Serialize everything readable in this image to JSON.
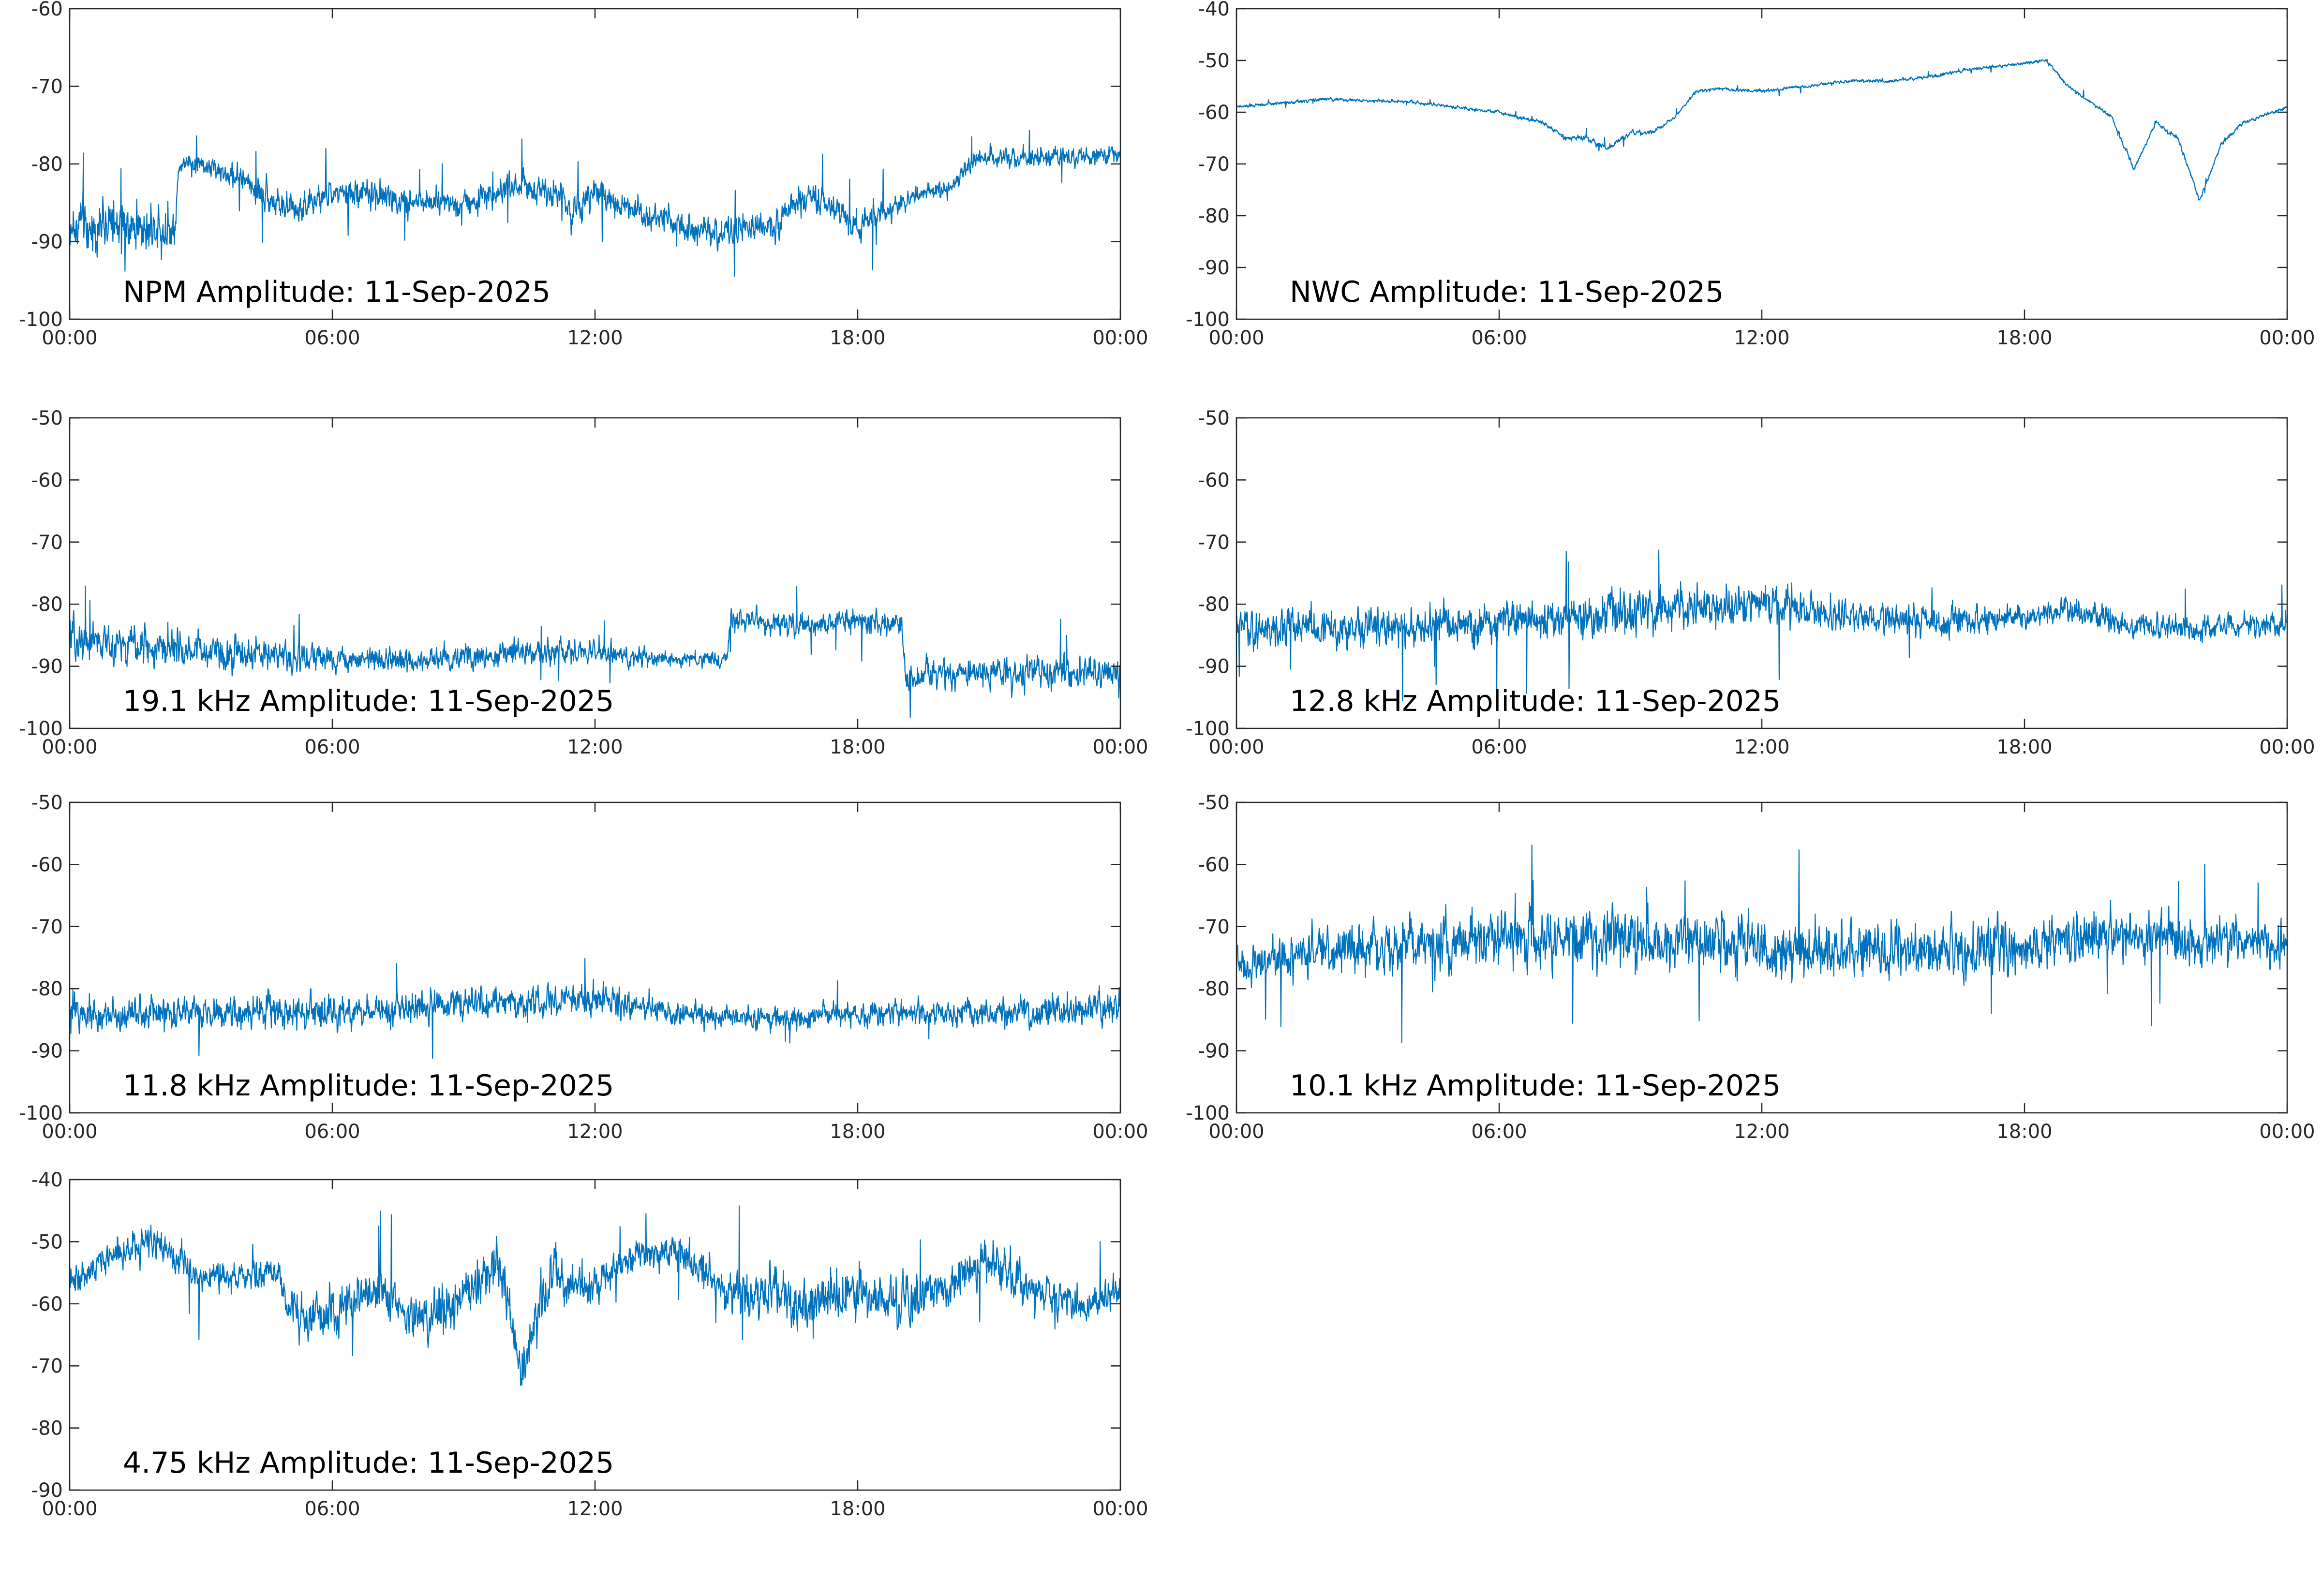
{
  "chart_data": [
    {
      "type": "line",
      "title": "NPM Amplitude: 11-Sep-2025",
      "x_ticks": [
        "00:00",
        "06:00",
        "12:00",
        "18:00",
        "00:00"
      ],
      "xlim_hours": [
        0,
        24
      ],
      "ylim": [
        -100,
        -60
      ],
      "y_ticks": [
        -60,
        -70,
        -80,
        -90,
        -100
      ],
      "series": [
        {
          "color": "#0072BD",
          "hours": [
            0,
            1,
            2,
            2.4,
            2.5,
            3,
            4,
            5,
            6,
            7,
            8,
            9,
            10,
            11,
            11.5,
            12,
            13,
            14,
            15,
            16,
            17,
            18,
            19,
            20,
            20.3,
            20.5,
            21,
            22,
            23,
            24
          ],
          "center": [
            -88,
            -88,
            -88,
            -88,
            -80,
            -80,
            -82,
            -86,
            -84,
            -84,
            -85,
            -85,
            -83,
            -83,
            -86,
            -84,
            -86,
            -88,
            -89,
            -88,
            -84,
            -88,
            -85,
            -83,
            -82,
            -80,
            -79,
            -79,
            -79,
            -79
          ],
          "spread": [
            5,
            5,
            5,
            5,
            2,
            2,
            3,
            3,
            3,
            3,
            3,
            3,
            3,
            3,
            4,
            3,
            3,
            3,
            3,
            3,
            3,
            3,
            2,
            2,
            2,
            2,
            2,
            2,
            2,
            2
          ]
        }
      ]
    },
    {
      "type": "line",
      "title": "NWC Amplitude: 11-Sep-2025",
      "x_ticks": [
        "00:00",
        "06:00",
        "12:00",
        "18:00",
        "00:00"
      ],
      "xlim_hours": [
        0,
        24
      ],
      "ylim": [
        -100,
        -40
      ],
      "y_ticks": [
        -40,
        -50,
        -60,
        -70,
        -80,
        -90,
        -100
      ],
      "series": [
        {
          "color": "#0072BD",
          "hours": [
            0,
            2,
            4,
            5,
            6,
            7,
            7.5,
            8,
            8.5,
            9,
            9.5,
            10,
            10.5,
            11,
            12,
            13,
            14,
            15,
            16,
            16.5,
            17,
            18,
            18.5,
            19,
            19.5,
            20,
            20.5,
            21,
            21.5,
            22,
            22.5,
            23,
            24
          ],
          "center": [
            -59,
            -57.5,
            -58,
            -59,
            -60,
            -62,
            -65,
            -65,
            -67,
            -64,
            -64,
            -61,
            -56,
            -55.5,
            -56,
            -55,
            -54,
            -54,
            -53,
            -52,
            -51.5,
            -50.5,
            -50,
            -55,
            -58,
            -61,
            -71,
            -62,
            -65,
            -77,
            -66,
            -62,
            -59
          ],
          "spread": [
            0.5,
            0.5,
            0.5,
            0.5,
            0.5,
            0.6,
            0.8,
            0.8,
            0.8,
            0.8,
            0.6,
            0.6,
            0.5,
            0.5,
            0.5,
            0.5,
            0.5,
            0.5,
            0.5,
            0.5,
            0.5,
            0.5,
            0.5,
            0.6,
            0.6,
            0.6,
            0.8,
            0.6,
            0.6,
            0.8,
            0.6,
            0.6,
            0.5
          ]
        }
      ]
    },
    {
      "type": "line",
      "title": "19.1 kHz Amplitude: 11-Sep-2025",
      "x_ticks": [
        "00:00",
        "06:00",
        "12:00",
        "18:00",
        "00:00"
      ],
      "xlim_hours": [
        0,
        24
      ],
      "ylim": [
        -100,
        -50
      ],
      "y_ticks": [
        -50,
        -60,
        -70,
        -80,
        -90,
        -100
      ],
      "series": [
        {
          "color": "#0072BD",
          "hours": [
            0,
            2,
            4,
            6,
            8,
            10,
            12,
            14,
            15,
            15.1,
            17,
            19,
            19.1,
            20,
            22,
            24
          ],
          "center": [
            -86,
            -87,
            -88,
            -89,
            -89,
            -88,
            -88,
            -89,
            -89,
            -83,
            -83,
            -83,
            -92,
            -91,
            -91,
            -91
          ],
          "spread": [
            5,
            5,
            4,
            3,
            3,
            3,
            3,
            2,
            2,
            3,
            3,
            3,
            4,
            4,
            4,
            4
          ]
        }
      ]
    },
    {
      "type": "line",
      "title": "12.8 kHz Amplitude: 11-Sep-2025",
      "x_ticks": [
        "00:00",
        "06:00",
        "12:00",
        "18:00",
        "00:00"
      ],
      "xlim_hours": [
        0,
        24
      ],
      "ylim": [
        -100,
        -50
      ],
      "y_ticks": [
        -50,
        -60,
        -70,
        -80,
        -90,
        -100
      ],
      "series": [
        {
          "color": "#0072BD",
          "hours": [
            0,
            2,
            4,
            6,
            8,
            10,
            12,
            14,
            16,
            18,
            19,
            20,
            22,
            24
          ],
          "center": [
            -84,
            -84,
            -84,
            -83,
            -82,
            -81,
            -80,
            -82,
            -83,
            -82,
            -81,
            -83,
            -84,
            -83
          ],
          "spread": [
            5,
            5,
            5,
            5,
            5,
            5,
            5,
            4,
            4,
            3,
            3,
            3,
            3,
            3
          ]
        }
      ]
    },
    {
      "type": "line",
      "title": "11.8 kHz Amplitude: 11-Sep-2025",
      "x_ticks": [
        "00:00",
        "06:00",
        "12:00",
        "18:00",
        "00:00"
      ],
      "xlim_hours": [
        0,
        24
      ],
      "ylim": [
        -100,
        -50
      ],
      "y_ticks": [
        -50,
        -60,
        -70,
        -80,
        -90,
        -100
      ],
      "series": [
        {
          "color": "#0072BD",
          "hours": [
            0,
            2,
            4,
            6,
            8,
            10,
            12,
            14,
            16,
            18,
            20,
            22,
            24
          ],
          "center": [
            -84,
            -84,
            -84,
            -84,
            -83,
            -82,
            -82,
            -84,
            -85,
            -84,
            -84,
            -84,
            -83
          ],
          "spread": [
            4,
            4,
            4,
            4,
            4,
            4,
            4,
            3,
            3,
            3,
            3,
            4,
            4
          ]
        }
      ]
    },
    {
      "type": "line",
      "title": "10.1 kHz Amplitude: 11-Sep-2025",
      "x_ticks": [
        "00:00",
        "06:00",
        "12:00",
        "18:00",
        "00:00"
      ],
      "xlim_hours": [
        0,
        24
      ],
      "ylim": [
        -100,
        -50
      ],
      "y_ticks": [
        -50,
        -60,
        -70,
        -80,
        -90,
        -100
      ],
      "series": [
        {
          "color": "#0072BD",
          "hours": [
            0,
            2,
            4,
            6,
            8,
            10,
            12,
            14,
            16,
            18,
            20,
            22,
            24
          ],
          "center": [
            -76,
            -74,
            -73,
            -72,
            -72,
            -72,
            -73,
            -74,
            -74,
            -73,
            -71,
            -72,
            -73
          ],
          "spread": [
            5,
            6,
            7,
            7,
            7,
            7,
            7,
            7,
            7,
            7,
            6,
            6,
            5
          ]
        }
      ]
    },
    {
      "type": "line",
      "title": "4.75 kHz Amplitude: 11-Sep-2025",
      "x_ticks": [
        "00:00",
        "06:00",
        "12:00",
        "18:00",
        "00:00"
      ],
      "xlim_hours": [
        0,
        24
      ],
      "ylim": [
        -90,
        -40
      ],
      "y_ticks": [
        -40,
        -50,
        -60,
        -70,
        -80,
        -90
      ],
      "series": [
        {
          "color": "#0072BD",
          "hours": [
            0,
            1,
            2,
            3,
            4,
            4.8,
            5,
            6,
            7,
            8,
            9,
            9.8,
            10.3,
            11,
            12,
            13,
            14,
            15,
            16,
            17,
            18,
            19,
            20,
            21,
            22,
            23,
            24
          ],
          "center": [
            -57,
            -52,
            -50,
            -56,
            -56,
            -55,
            -62,
            -62,
            -57,
            -63,
            -59,
            -53,
            -70,
            -56,
            -57,
            -52,
            -52,
            -58,
            -58,
            -60,
            -58,
            -60,
            -57,
            -53,
            -58,
            -60,
            -58
          ],
          "spread": [
            4,
            4,
            4,
            4,
            4,
            3,
            6,
            6,
            5,
            7,
            6,
            6,
            7,
            6,
            5,
            4,
            4,
            6,
            6,
            7,
            6,
            6,
            5,
            5,
            5,
            5,
            4
          ]
        }
      ]
    }
  ]
}
